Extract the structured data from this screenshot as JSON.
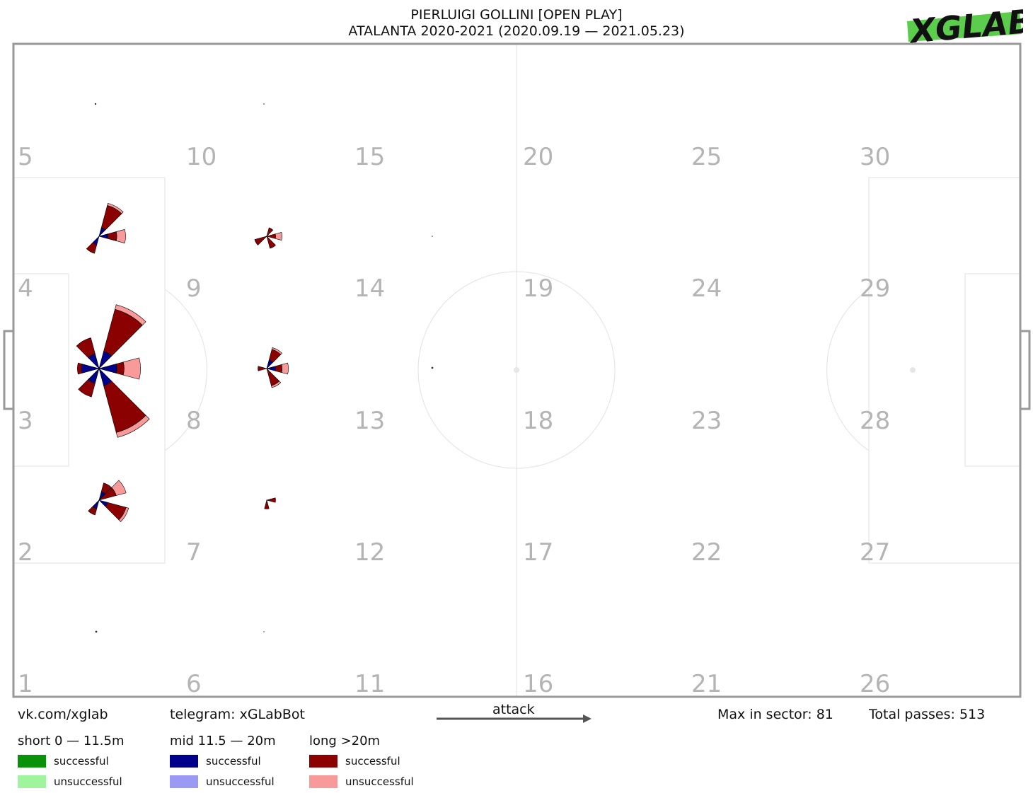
{
  "title": {
    "line1": "PIERLUIGI GOLLINI [OPEN PLAY]",
    "line2": "ATALANTA 2020-2021 (2020.09.19 — 2021.05.23)"
  },
  "logo_text": "XGLAB",
  "colors": {
    "short_successful": "#0a910a",
    "short_unsuccessful": "#9ef59e",
    "mid_successful": "#00008b",
    "mid_unsuccessful": "#9a9af5",
    "long_successful": "#8b0000",
    "long_unsuccessful": "#f99a9a",
    "pitch_line": "#e6e6e6",
    "pitch_border": "#999999",
    "sector_number": "#b4b4b4",
    "logo_green": "#5ccc4c"
  },
  "footer": {
    "vk": "vk.com/xglab",
    "telegram": "telegram: xGLabBot",
    "attack": "attack",
    "max_in_sector": "Max in sector: 81",
    "total_passes": "Total passes: 513"
  },
  "legend": [
    {
      "name": "short 0 — 11.5m",
      "successful": "successful",
      "unsuccessful": "unsuccessful"
    },
    {
      "name": "mid 11.5 — 20m",
      "successful": "successful",
      "unsuccessful": "unsuccessful"
    },
    {
      "name": "long >20m",
      "successful": "successful",
      "unsuccessful": "unsuccessful"
    }
  ],
  "chart_data": {
    "type": "polar-rose-pitch",
    "sector_numbers": [
      "1",
      "2",
      "3",
      "4",
      "5",
      "6",
      "7",
      "8",
      "9",
      "10",
      "11",
      "12",
      "13",
      "14",
      "15",
      "16",
      "17",
      "18",
      "19",
      "20",
      "21",
      "22",
      "23",
      "24",
      "25",
      "26",
      "27",
      "28",
      "29",
      "30"
    ],
    "grid": {
      "columns": 6,
      "rows": 5,
      "numbering": "bottom-to-top, left-to-right"
    },
    "max_in_sector": 81,
    "total_passes": 513,
    "roses": [
      {
        "sector": 3,
        "wedges": [
          {
            "dir": -60,
            "mid_s": 4,
            "long_s": 44,
            "long_u": 8
          },
          {
            "dir": -120,
            "mid_s": 3,
            "long_s": 10,
            "long_u": 0
          },
          {
            "dir": 0,
            "mid_s": 4,
            "long_s": 4,
            "long_u": 14
          },
          {
            "dir": 60,
            "mid_s": 4,
            "long_s": 52,
            "long_u": 9
          },
          {
            "dir": 120,
            "mid_s": 3,
            "long_s": 8,
            "long_u": 0
          },
          {
            "dir": 180,
            "mid_s": 4,
            "long_s": 2,
            "long_u": 0
          }
        ]
      },
      {
        "sector": 4,
        "wedges": [
          {
            "dir": -60,
            "mid_s": 1,
            "long_s": 12,
            "long_u": 2
          },
          {
            "dir": 0,
            "mid_s": 1,
            "long_s": 3,
            "long_u": 5
          },
          {
            "dir": 60,
            "mid_s": 0,
            "long_s": 0,
            "long_u": 0
          },
          {
            "dir": 120,
            "mid_s": 1,
            "long_s": 3,
            "long_u": 0
          }
        ]
      },
      {
        "sector": 2,
        "wedges": [
          {
            "dir": -60,
            "mid_s": 1,
            "long_s": 3,
            "long_u": 0
          },
          {
            "dir": -30,
            "mid_s": 0,
            "long_s": 4,
            "long_u": 6
          },
          {
            "dir": 30,
            "mid_s": 1,
            "long_s": 9,
            "long_u": 2
          },
          {
            "dir": 120,
            "mid_s": 1,
            "long_s": 2,
            "long_u": 0
          }
        ]
      },
      {
        "sector": 9,
        "wedges": [
          {
            "dir": -60,
            "mid_s": 0,
            "long_s": 1,
            "long_u": 0
          },
          {
            "dir": 0,
            "mid_s": 0,
            "long_s": 1,
            "long_u": 2
          },
          {
            "dir": 60,
            "mid_s": 0,
            "long_s": 2,
            "long_u": 0
          },
          {
            "dir": 150,
            "mid_s": 0,
            "long_s": 2,
            "long_u": 0
          }
        ]
      },
      {
        "sector": 8,
        "wedges": [
          {
            "dir": -60,
            "mid_s": 1,
            "long_s": 4,
            "long_u": 1
          },
          {
            "dir": 0,
            "mid_s": 1,
            "long_s": 2,
            "long_u": 3
          },
          {
            "dir": 60,
            "mid_s": 0,
            "long_s": 4,
            "long_u": 1
          },
          {
            "dir": 180,
            "mid_s": 0,
            "long_s": 1,
            "long_u": 0
          }
        ]
      },
      {
        "sector": 7,
        "wedges": [
          {
            "dir": 0,
            "mid_s": 0,
            "long_s": 1,
            "long_u": 0
          },
          {
            "dir": 90,
            "mid_s": 0,
            "long_s": 1,
            "long_u": 0
          }
        ]
      }
    ]
  }
}
